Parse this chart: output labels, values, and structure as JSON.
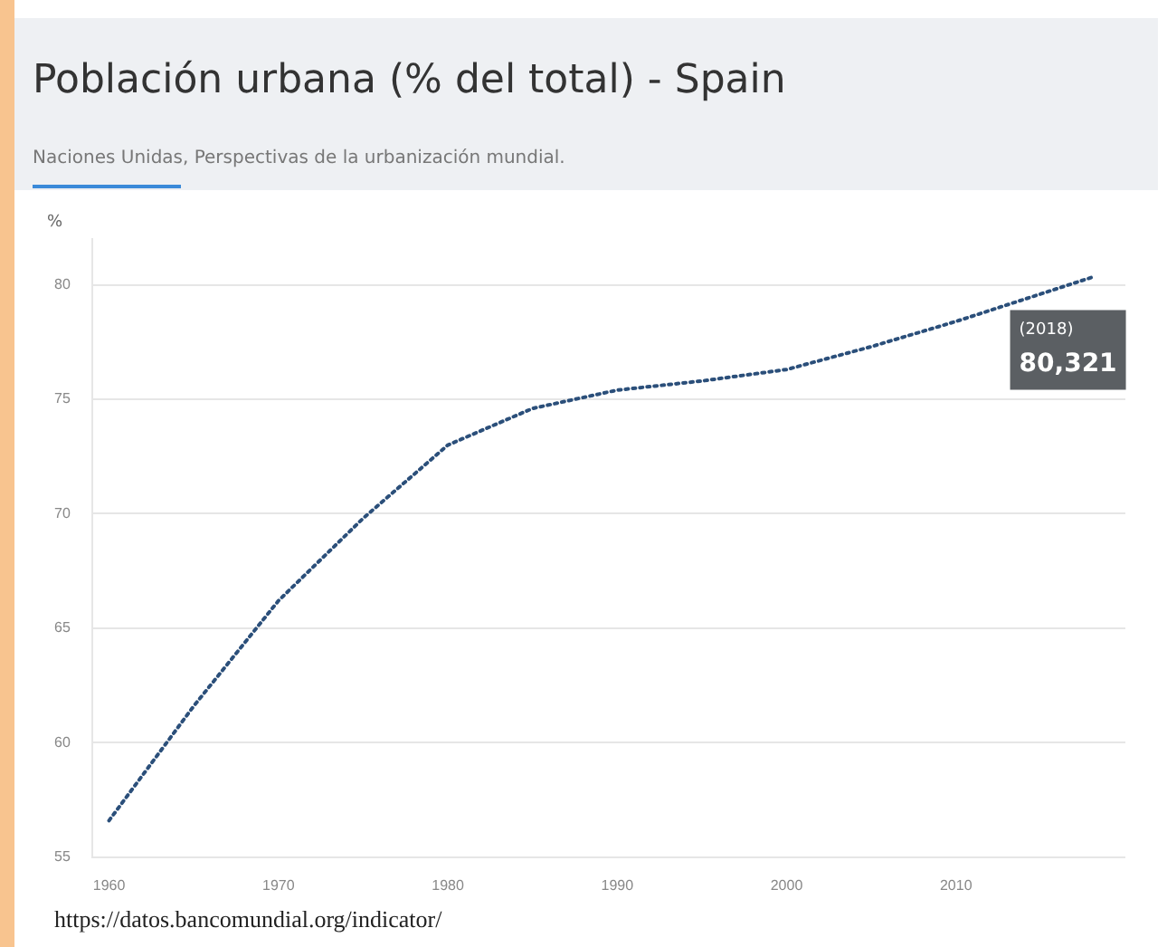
{
  "chart_data": {
    "type": "line",
    "title": "Población urbana (% del total) - Spain",
    "subtitle": "Naciones Unidas, Perspectivas de la urbanización mundial.",
    "ylabel": "%",
    "x": [
      1960,
      1965,
      1970,
      1975,
      1980,
      1985,
      1990,
      1995,
      2000,
      2005,
      2010,
      2015,
      2018
    ],
    "series": [
      {
        "color": "#2b4f7a",
        "values": [
          56.6,
          61.6,
          66.2,
          69.8,
          73.0,
          74.6,
          75.4,
          75.8,
          76.3,
          77.3,
          78.4,
          79.6,
          80.321
        ]
      }
    ],
    "xlim": [
      1959,
      2020
    ],
    "xticks": [
      1960,
      1970,
      1980,
      1990,
      2000,
      2010
    ],
    "ylim": [
      55,
      82
    ],
    "yticks": [
      55,
      60,
      65,
      70,
      75,
      80
    ],
    "grid": "y",
    "legend": false,
    "marker": "none",
    "line_style": "dotted",
    "annotations": [
      {
        "text": "(2018)",
        "x": 2018,
        "y": 80.321
      },
      {
        "text": "80,321",
        "x": 2018,
        "y": 80.321
      },
      "https://datos.bancomundial.org/indicator/"
    ]
  }
}
